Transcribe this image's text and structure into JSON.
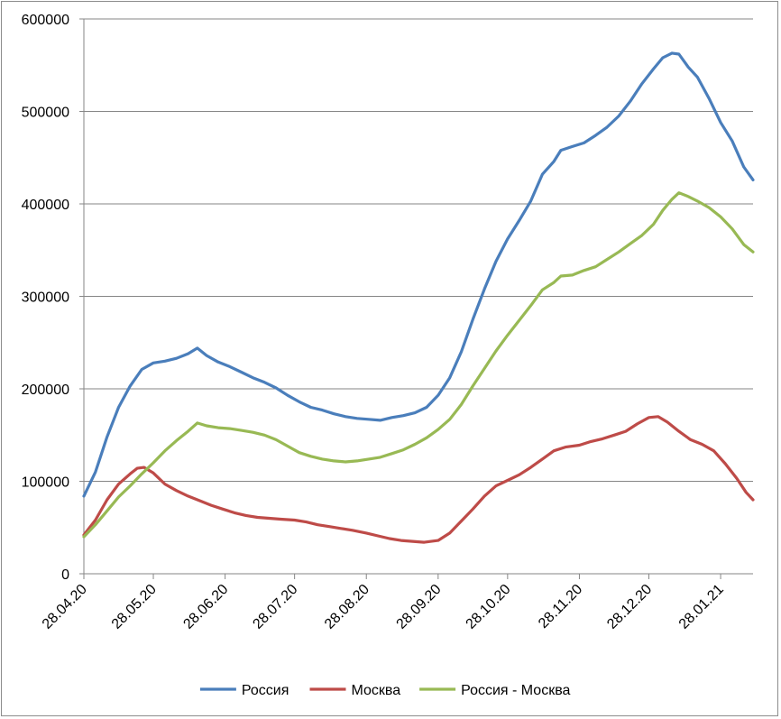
{
  "chart_data": {
    "type": "line",
    "title": "",
    "xlabel": "",
    "ylabel": "",
    "ylim": [
      0,
      600000
    ],
    "yticks": [
      0,
      100000,
      200000,
      300000,
      400000,
      500000,
      600000
    ],
    "ytick_labels": [
      "0",
      "100000",
      "200000",
      "300000",
      "400000",
      "500000",
      "600000"
    ],
    "xlim": [
      "2020-04-28",
      "2021-02-11"
    ],
    "xticks": [
      "2020-04-28",
      "2020-05-28",
      "2020-06-28",
      "2020-07-28",
      "2020-08-28",
      "2020-09-28",
      "2020-10-28",
      "2020-11-28",
      "2020-12-28",
      "2021-01-28"
    ],
    "xtick_labels": [
      "28.04.20",
      "28.05.20",
      "28.06.20",
      "28.07.20",
      "28.08.20",
      "28.09.20",
      "28.10.20",
      "28.11.20",
      "28.12.20",
      "28.01.21"
    ],
    "grid": "horizontal",
    "legend_position": "bottom",
    "series": [
      {
        "name": "Россия",
        "color": "#4a7ebb",
        "points": [
          [
            "2020-04-28",
            84000
          ],
          [
            "2020-05-03",
            110000
          ],
          [
            "2020-05-08",
            148000
          ],
          [
            "2020-05-13",
            180000
          ],
          [
            "2020-05-18",
            203000
          ],
          [
            "2020-05-23",
            221000
          ],
          [
            "2020-05-28",
            228000
          ],
          [
            "2020-06-02",
            230000
          ],
          [
            "2020-06-07",
            233000
          ],
          [
            "2020-06-12",
            238000
          ],
          [
            "2020-06-16",
            244000
          ],
          [
            "2020-06-20",
            236000
          ],
          [
            "2020-06-25",
            229000
          ],
          [
            "2020-06-30",
            224000
          ],
          [
            "2020-07-05",
            218000
          ],
          [
            "2020-07-10",
            212000
          ],
          [
            "2020-07-15",
            207000
          ],
          [
            "2020-07-20",
            201000
          ],
          [
            "2020-07-25",
            193000
          ],
          [
            "2020-07-30",
            186000
          ],
          [
            "2020-08-04",
            180000
          ],
          [
            "2020-08-09",
            177000
          ],
          [
            "2020-08-14",
            173000
          ],
          [
            "2020-08-19",
            170000
          ],
          [
            "2020-08-24",
            168000
          ],
          [
            "2020-08-29",
            167000
          ],
          [
            "2020-09-03",
            166000
          ],
          [
            "2020-09-08",
            169000
          ],
          [
            "2020-09-13",
            171000
          ],
          [
            "2020-09-18",
            174000
          ],
          [
            "2020-09-23",
            180000
          ],
          [
            "2020-09-28",
            193000
          ],
          [
            "2020-10-03",
            212000
          ],
          [
            "2020-10-08",
            240000
          ],
          [
            "2020-10-13",
            275000
          ],
          [
            "2020-10-18",
            308000
          ],
          [
            "2020-10-23",
            338000
          ],
          [
            "2020-10-28",
            362000
          ],
          [
            "2020-11-02",
            382000
          ],
          [
            "2020-11-07",
            403000
          ],
          [
            "2020-11-12",
            432000
          ],
          [
            "2020-11-17",
            446000
          ],
          [
            "2020-11-20",
            458000
          ],
          [
            "2020-11-25",
            462000
          ],
          [
            "2020-11-30",
            466000
          ],
          [
            "2020-12-05",
            474000
          ],
          [
            "2020-12-10",
            483000
          ],
          [
            "2020-12-15",
            495000
          ],
          [
            "2020-12-20",
            511000
          ],
          [
            "2020-12-25",
            530000
          ],
          [
            "2020-12-30",
            546000
          ],
          [
            "2021-01-03",
            558000
          ],
          [
            "2021-01-07",
            563000
          ],
          [
            "2021-01-10",
            562000
          ],
          [
            "2021-01-14",
            548000
          ],
          [
            "2021-01-18",
            537000
          ],
          [
            "2021-01-23",
            514000
          ],
          [
            "2021-01-28",
            488000
          ],
          [
            "2021-02-02",
            468000
          ],
          [
            "2021-02-07",
            440000
          ],
          [
            "2021-02-11",
            426000
          ]
        ]
      },
      {
        "name": "Москва",
        "color": "#be4b48",
        "points": [
          [
            "2020-04-28",
            42000
          ],
          [
            "2020-05-03",
            58000
          ],
          [
            "2020-05-08",
            80000
          ],
          [
            "2020-05-13",
            97000
          ],
          [
            "2020-05-18",
            108000
          ],
          [
            "2020-05-21",
            114000
          ],
          [
            "2020-05-24",
            115000
          ],
          [
            "2020-05-28",
            109000
          ],
          [
            "2020-06-02",
            97000
          ],
          [
            "2020-06-07",
            90000
          ],
          [
            "2020-06-12",
            84000
          ],
          [
            "2020-06-17",
            79000
          ],
          [
            "2020-06-22",
            74000
          ],
          [
            "2020-06-27",
            70000
          ],
          [
            "2020-07-02",
            66000
          ],
          [
            "2020-07-07",
            63000
          ],
          [
            "2020-07-12",
            61000
          ],
          [
            "2020-07-17",
            60000
          ],
          [
            "2020-07-22",
            59000
          ],
          [
            "2020-07-28",
            58000
          ],
          [
            "2020-08-02",
            56000
          ],
          [
            "2020-08-07",
            53000
          ],
          [
            "2020-08-12",
            51000
          ],
          [
            "2020-08-17",
            49000
          ],
          [
            "2020-08-22",
            47000
          ],
          [
            "2020-08-28",
            44000
          ],
          [
            "2020-09-02",
            41000
          ],
          [
            "2020-09-07",
            38000
          ],
          [
            "2020-09-12",
            36000
          ],
          [
            "2020-09-17",
            35000
          ],
          [
            "2020-09-22",
            34000
          ],
          [
            "2020-09-28",
            36000
          ],
          [
            "2020-10-03",
            44000
          ],
          [
            "2020-10-08",
            57000
          ],
          [
            "2020-10-13",
            70000
          ],
          [
            "2020-10-18",
            84000
          ],
          [
            "2020-10-23",
            95000
          ],
          [
            "2020-10-28",
            101000
          ],
          [
            "2020-11-02",
            107000
          ],
          [
            "2020-11-07",
            115000
          ],
          [
            "2020-11-12",
            124000
          ],
          [
            "2020-11-17",
            133000
          ],
          [
            "2020-11-22",
            137000
          ],
          [
            "2020-11-28",
            139000
          ],
          [
            "2020-12-03",
            143000
          ],
          [
            "2020-12-08",
            146000
          ],
          [
            "2020-12-13",
            150000
          ],
          [
            "2020-12-18",
            154000
          ],
          [
            "2020-12-23",
            162000
          ],
          [
            "2020-12-28",
            169000
          ],
          [
            "2021-01-01",
            170000
          ],
          [
            "2021-01-05",
            164000
          ],
          [
            "2021-01-10",
            154000
          ],
          [
            "2021-01-15",
            145000
          ],
          [
            "2021-01-20",
            140000
          ],
          [
            "2021-01-25",
            133000
          ],
          [
            "2021-01-30",
            119000
          ],
          [
            "2021-02-04",
            103000
          ],
          [
            "2021-02-08",
            88000
          ],
          [
            "2021-02-11",
            80000
          ]
        ]
      },
      {
        "name": "Россия - Москва",
        "color": "#98b954",
        "points": [
          [
            "2020-04-28",
            40000
          ],
          [
            "2020-05-03",
            53000
          ],
          [
            "2020-05-08",
            68000
          ],
          [
            "2020-05-13",
            83000
          ],
          [
            "2020-05-18",
            95000
          ],
          [
            "2020-05-23",
            108000
          ],
          [
            "2020-05-28",
            120000
          ],
          [
            "2020-06-02",
            133000
          ],
          [
            "2020-06-07",
            144000
          ],
          [
            "2020-06-12",
            154000
          ],
          [
            "2020-06-16",
            163000
          ],
          [
            "2020-06-20",
            160000
          ],
          [
            "2020-06-25",
            158000
          ],
          [
            "2020-06-30",
            157000
          ],
          [
            "2020-07-05",
            155000
          ],
          [
            "2020-07-10",
            153000
          ],
          [
            "2020-07-15",
            150000
          ],
          [
            "2020-07-20",
            145000
          ],
          [
            "2020-07-25",
            138000
          ],
          [
            "2020-07-30",
            131000
          ],
          [
            "2020-08-04",
            127000
          ],
          [
            "2020-08-09",
            124000
          ],
          [
            "2020-08-14",
            122000
          ],
          [
            "2020-08-19",
            121000
          ],
          [
            "2020-08-24",
            122000
          ],
          [
            "2020-08-29",
            124000
          ],
          [
            "2020-09-03",
            126000
          ],
          [
            "2020-09-08",
            130000
          ],
          [
            "2020-09-13",
            134000
          ],
          [
            "2020-09-18",
            140000
          ],
          [
            "2020-09-23",
            147000
          ],
          [
            "2020-09-28",
            156000
          ],
          [
            "2020-10-03",
            167000
          ],
          [
            "2020-10-08",
            183000
          ],
          [
            "2020-10-13",
            203000
          ],
          [
            "2020-10-18",
            222000
          ],
          [
            "2020-10-23",
            241000
          ],
          [
            "2020-10-28",
            258000
          ],
          [
            "2020-11-02",
            274000
          ],
          [
            "2020-11-07",
            290000
          ],
          [
            "2020-11-12",
            307000
          ],
          [
            "2020-11-17",
            315000
          ],
          [
            "2020-11-20",
            322000
          ],
          [
            "2020-11-25",
            323000
          ],
          [
            "2020-11-30",
            328000
          ],
          [
            "2020-12-05",
            332000
          ],
          [
            "2020-12-10",
            340000
          ],
          [
            "2020-12-15",
            348000
          ],
          [
            "2020-12-20",
            357000
          ],
          [
            "2020-12-25",
            366000
          ],
          [
            "2020-12-30",
            378000
          ],
          [
            "2021-01-03",
            393000
          ],
          [
            "2021-01-07",
            405000
          ],
          [
            "2021-01-10",
            412000
          ],
          [
            "2021-01-14",
            408000
          ],
          [
            "2021-01-18",
            403000
          ],
          [
            "2021-01-23",
            396000
          ],
          [
            "2021-01-28",
            386000
          ],
          [
            "2021-02-02",
            373000
          ],
          [
            "2021-02-07",
            356000
          ],
          [
            "2021-02-11",
            348000
          ]
        ]
      }
    ]
  }
}
